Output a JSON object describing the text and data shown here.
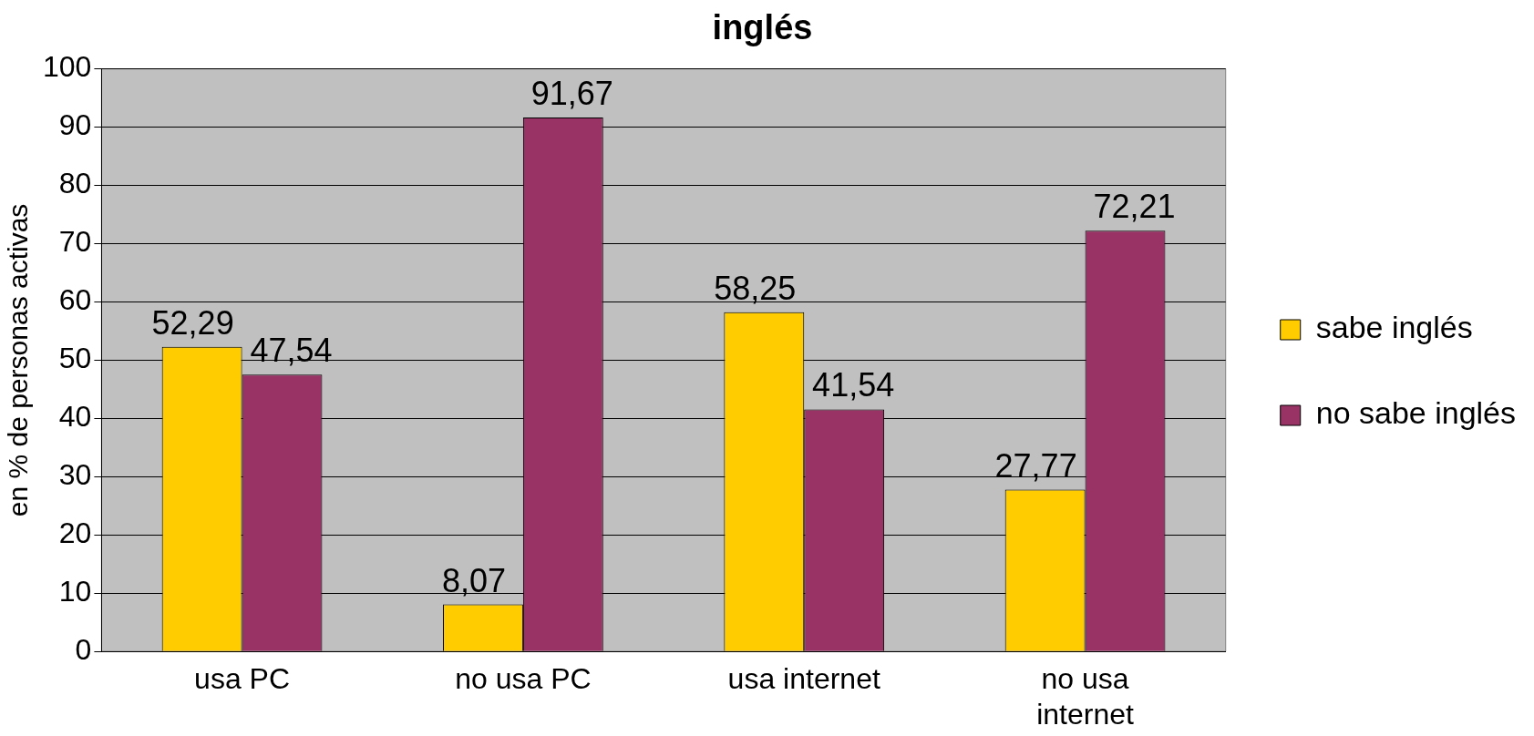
{
  "chart_data": {
    "type": "bar",
    "title": "inglés",
    "ylabel": "en % de personas activas",
    "categories": [
      "usa PC",
      "no usa PC",
      "usa internet",
      "no usa\ninternet"
    ],
    "series": [
      {
        "name": "sabe inglés",
        "color": "#ffcc00",
        "values": [
          52.29,
          8.07,
          58.25,
          27.77
        ],
        "value_labels": [
          "52,29",
          "8,07",
          "58,25",
          "27,77"
        ]
      },
      {
        "name": "no sabe inglés",
        "color": "#993366",
        "values": [
          47.54,
          91.67,
          41.54,
          72.21
        ],
        "value_labels": [
          "47,54",
          "91,67",
          "41,54",
          "72,21"
        ]
      }
    ],
    "ylim": [
      0,
      100
    ],
    "yticks": [
      0,
      10,
      20,
      30,
      40,
      50,
      60,
      70,
      80,
      90,
      100
    ],
    "grid": "y",
    "legend": "right"
  }
}
